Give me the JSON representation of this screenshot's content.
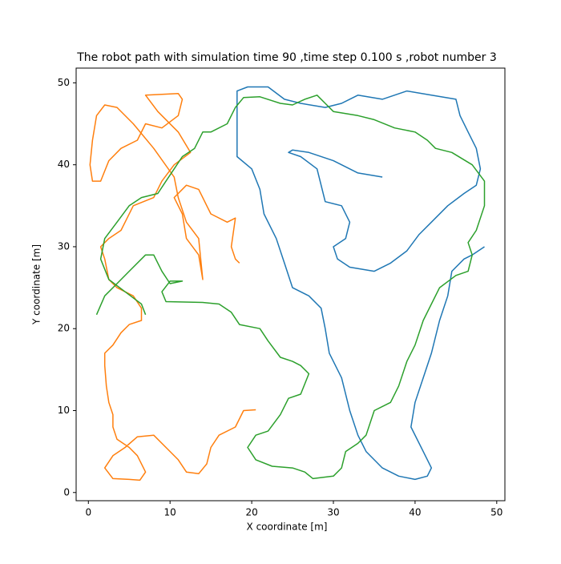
{
  "chart_data": {
    "type": "line",
    "title": "The robot path with simulation time 90 ,time step 0.100 s ,robot number 3",
    "xlabel": "X coordinate [m]",
    "ylabel": "Y coordinate [m]",
    "xlim": [
      -1.5,
      51
    ],
    "ylim": [
      -1,
      51.8
    ],
    "xticks": [
      0,
      10,
      20,
      30,
      40,
      50
    ],
    "yticks": [
      0,
      10,
      20,
      30,
      40,
      50
    ],
    "series": [
      {
        "color": "#1f77b4",
        "x": [
          36,
          33,
          30,
          27,
          25,
          24.5,
          26,
          28,
          28.5,
          29,
          31,
          32,
          31.5,
          30,
          30.5,
          32,
          35,
          37,
          39,
          40.5,
          42,
          44,
          46,
          47.5,
          48,
          47.5,
          46.5,
          45.5,
          45,
          42,
          39,
          36,
          33,
          31,
          29,
          26,
          24,
          22,
          19.5,
          18.2,
          18.2,
          18.2,
          20,
          21,
          21.5,
          23,
          24,
          25,
          27,
          28.5,
          29,
          29.5,
          31,
          32,
          33,
          34,
          36,
          38,
          40,
          41.5,
          42,
          41,
          39.5,
          40,
          41,
          42,
          43,
          44,
          44.5,
          46,
          47,
          48.5
        ],
        "values": [
          38.5,
          39,
          40.5,
          41.5,
          41.8,
          41.5,
          41,
          39.5,
          37.5,
          35.5,
          35,
          33,
          31,
          30,
          28.5,
          27.5,
          27,
          28,
          29.5,
          31.5,
          33,
          35,
          36.5,
          37.5,
          39.5,
          42,
          44,
          46,
          48,
          48.5,
          49,
          48,
          48.5,
          47.5,
          47,
          47.5,
          48,
          49.5,
          49.5,
          49,
          44,
          41,
          39.5,
          37,
          34,
          31,
          28,
          25,
          24,
          22.5,
          20,
          17,
          14,
          10,
          7,
          5,
          3,
          2,
          1.6,
          2,
          3,
          5,
          8,
          11,
          14,
          17,
          21,
          24,
          27,
          28.5,
          29,
          30
        ]
      },
      {
        "color": "#ff7f0e",
        "x": [
          20.5,
          19,
          18,
          16,
          15,
          14.5,
          13.5,
          12,
          11,
          10,
          8,
          6,
          4.5,
          3,
          2,
          3,
          5,
          6.3,
          7,
          6,
          5,
          3.5,
          3,
          3,
          2.5,
          2.2,
          2,
          2,
          3,
          4,
          5,
          6.5,
          6.5,
          5.5,
          3.5,
          2.5,
          2,
          1.5,
          2.5,
          4,
          4.5,
          5.5,
          8,
          9,
          10.5,
          12.5,
          11,
          8.5,
          7,
          11,
          11.5,
          11,
          9,
          7,
          6,
          4,
          2.5,
          1.5,
          0.5,
          0.2,
          0.5,
          1,
          2,
          3.5,
          5.5,
          8,
          10.5,
          11,
          12,
          13.5,
          14,
          13.5,
          12,
          11.5,
          10.5,
          12,
          13.5,
          14.5,
          15,
          17,
          18,
          17.5,
          18,
          18.5
        ],
        "values": [
          10.1,
          10,
          8,
          7,
          5.5,
          3.5,
          2.3,
          2.5,
          4,
          5,
          7,
          6.8,
          5.5,
          4.5,
          3,
          1.7,
          1.6,
          1.5,
          2.5,
          4.5,
          5.5,
          6.5,
          8,
          9.5,
          11,
          13,
          15.5,
          17,
          18,
          19.5,
          20.5,
          21,
          22.5,
          24,
          25,
          26,
          28.5,
          30,
          31,
          32,
          33,
          35,
          36,
          38,
          40,
          41.5,
          44,
          46.5,
          48.5,
          48.7,
          48,
          46,
          44.5,
          45,
          43,
          42,
          40.5,
          38,
          38,
          40,
          43,
          46,
          47.3,
          47,
          45,
          42,
          38.5,
          36,
          33,
          31,
          26,
          29,
          31,
          34,
          36,
          37.5,
          37,
          35,
          34,
          33,
          33.5,
          30,
          28.5,
          28
        ]
      },
      {
        "color": "#2ca02c",
        "x": [
          1,
          2,
          3.5,
          5,
          7,
          8,
          9,
          10,
          11.5,
          10,
          9,
          9.5,
          14,
          16,
          17.5,
          18.5,
          21,
          22,
          23.5,
          25,
          26,
          27,
          26,
          24.5,
          23.5,
          22,
          20.5,
          19.5,
          20.5,
          22.5,
          25,
          26.5,
          27.5,
          30,
          31,
          31.5,
          33,
          34,
          35,
          37,
          38,
          39,
          40,
          41,
          42,
          43,
          45,
          46.5,
          47,
          46.5,
          47.5,
          48.5,
          48.5,
          47,
          44.5,
          42.5,
          41.5,
          40,
          37.5,
          35,
          33,
          30,
          29,
          28,
          26.5,
          25,
          23.5,
          21,
          19,
          18,
          17,
          15,
          14,
          13,
          11.5,
          10.5,
          9.5,
          8.5,
          6.5,
          5,
          3.5,
          2,
          1.5,
          2.5,
          4.5,
          6.5,
          7
        ],
        "values": [
          21.7,
          24,
          25.5,
          27,
          29,
          29,
          27,
          25.5,
          25.8,
          25.8,
          24.5,
          23.3,
          23.2,
          23,
          22,
          20.5,
          20,
          18.5,
          16.5,
          16,
          15.5,
          14.5,
          12,
          11.5,
          9.5,
          7.5,
          7,
          5.5,
          4,
          3.2,
          3,
          2.5,
          1.7,
          2,
          3,
          5,
          6,
          7,
          10,
          11,
          13,
          16,
          18,
          21,
          23,
          25,
          26.5,
          27,
          29,
          30.5,
          32,
          35,
          38,
          40,
          41.5,
          42,
          43,
          44,
          44.5,
          45.5,
          46,
          46.5,
          47.5,
          48.5,
          48,
          47.3,
          47.5,
          48.3,
          48.2,
          47,
          45,
          44,
          44,
          42,
          41,
          39.5,
          38,
          36.5,
          36,
          35,
          33,
          31,
          28.5,
          26,
          24.5,
          23,
          21.7
        ]
      }
    ]
  }
}
